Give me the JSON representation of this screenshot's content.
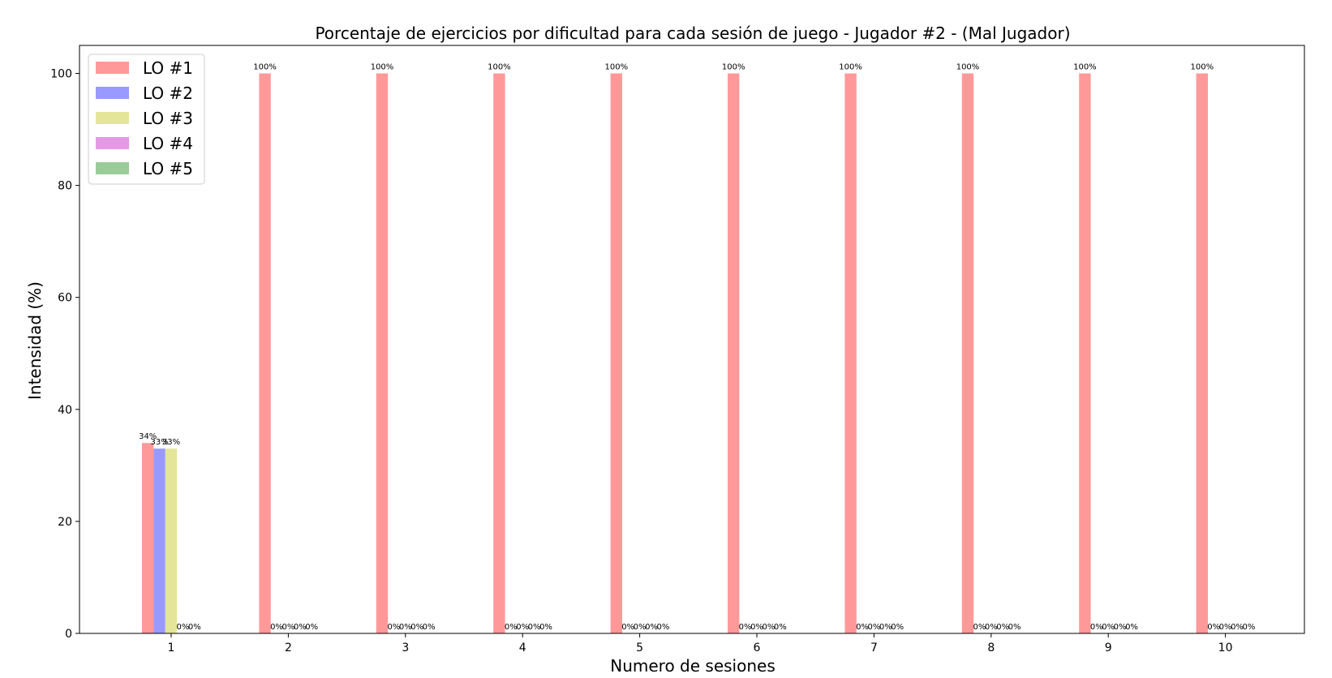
{
  "chart_data": {
    "type": "bar",
    "title": "Porcentaje de ejercicios por dificultad para cada sesión de juego - Jugador #2 - (Mal Jugador)",
    "xlabel": "Numero de sesiones",
    "ylabel": "Intensidad (%)",
    "categories": [
      "1",
      "2",
      "3",
      "4",
      "5",
      "6",
      "7",
      "8",
      "9",
      "10"
    ],
    "ylim": [
      0,
      105
    ],
    "yticks": [
      0,
      20,
      40,
      60,
      80,
      100
    ],
    "grid": false,
    "legend_position": "top-left",
    "series": [
      {
        "name": "LO #1",
        "color": "#ff9999",
        "values": [
          34,
          100,
          100,
          100,
          100,
          100,
          100,
          100,
          100,
          100
        ],
        "labels": [
          "34%",
          "100%",
          "100%",
          "100%",
          "100%",
          "100%",
          "100%",
          "100%",
          "100%",
          "100%"
        ]
      },
      {
        "name": "LO #2",
        "color": "#9999ff",
        "values": [
          33,
          0,
          0,
          0,
          0,
          0,
          0,
          0,
          0,
          0
        ],
        "labels": [
          "33%",
          "0%",
          "0%",
          "0%",
          "0%",
          "0%",
          "0%",
          "0%",
          "0%",
          "0%"
        ]
      },
      {
        "name": "LO #3",
        "color": "#e5e599",
        "values": [
          33,
          0,
          0,
          0,
          0,
          0,
          0,
          0,
          0,
          0
        ],
        "labels": [
          "33%",
          "0%",
          "0%",
          "0%",
          "0%",
          "0%",
          "0%",
          "0%",
          "0%",
          "0%"
        ]
      },
      {
        "name": "LO #4",
        "color": "#e599e5",
        "values": [
          0,
          0,
          0,
          0,
          0,
          0,
          0,
          0,
          0,
          0
        ],
        "labels": [
          "0%",
          "0%",
          "0%",
          "0%",
          "0%",
          "0%",
          "0%",
          "0%",
          "0%",
          "0%"
        ]
      },
      {
        "name": "LO #5",
        "color": "#99cc99",
        "values": [
          0,
          0,
          0,
          0,
          0,
          0,
          0,
          0,
          0,
          0
        ],
        "labels": [
          "0%",
          "0%",
          "0%",
          "0%",
          "0%",
          "0%",
          "0%",
          "0%",
          "0%",
          "0%"
        ]
      }
    ]
  }
}
